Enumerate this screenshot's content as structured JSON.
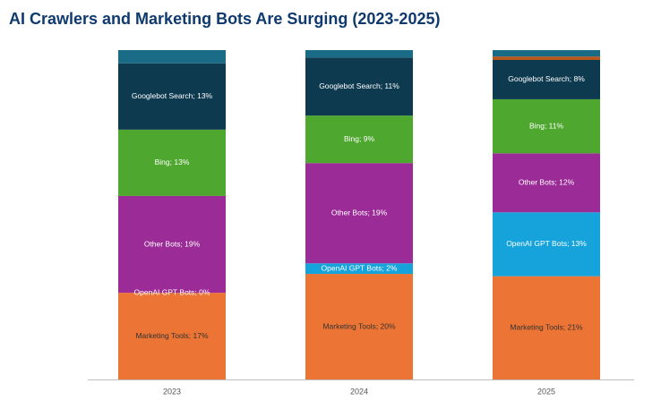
{
  "chart_data": {
    "type": "stacked_bar_percent",
    "title": "AI Crawlers and Marketing Bots Are Surging (2023-2025)",
    "categories": [
      "2023",
      "2024",
      "2025"
    ],
    "series": [
      {
        "color": "#ec7434",
        "values": [
          17,
          20,
          21
        ],
        "value_labels": [
          "Marketing Tools; 17%",
          "Marketing Tools; 20%",
          "Marketing Tools; 21%"
        ]
      },
      {
        "color": "#16a3db",
        "values": [
          0,
          2,
          13
        ],
        "value_labels": [
          "OpenAI GPT Bots; 0%",
          "OpenAI GPT Bots; 2%",
          "OpenAI GPT Bots; 13%"
        ]
      },
      {
        "color": "#9b2b96",
        "values": [
          19,
          19,
          12
        ],
        "value_labels": [
          "Other Bots; 19%",
          "Other Bots; 19%",
          "Other Bots; 12%"
        ]
      },
      {
        "color": "#4ea72e",
        "values": [
          13,
          9,
          11
        ],
        "value_labels": [
          "Bing; 13%",
          "Bing; 9%",
          "Bing; 11%"
        ]
      },
      {
        "color": "#0e3a50",
        "values": [
          13,
          11,
          8
        ],
        "value_labels": [
          "Googlebot Search; 13%",
          "Googlebot Search; 11%",
          "Googlebot Search; 8%"
        ]
      },
      {
        "color": "#b5561c",
        "values": [
          0,
          0,
          0.7
        ]
      },
      {
        "color": "#1a6b86",
        "values": [
          2.6,
          1.4,
          1.3
        ]
      }
    ]
  }
}
